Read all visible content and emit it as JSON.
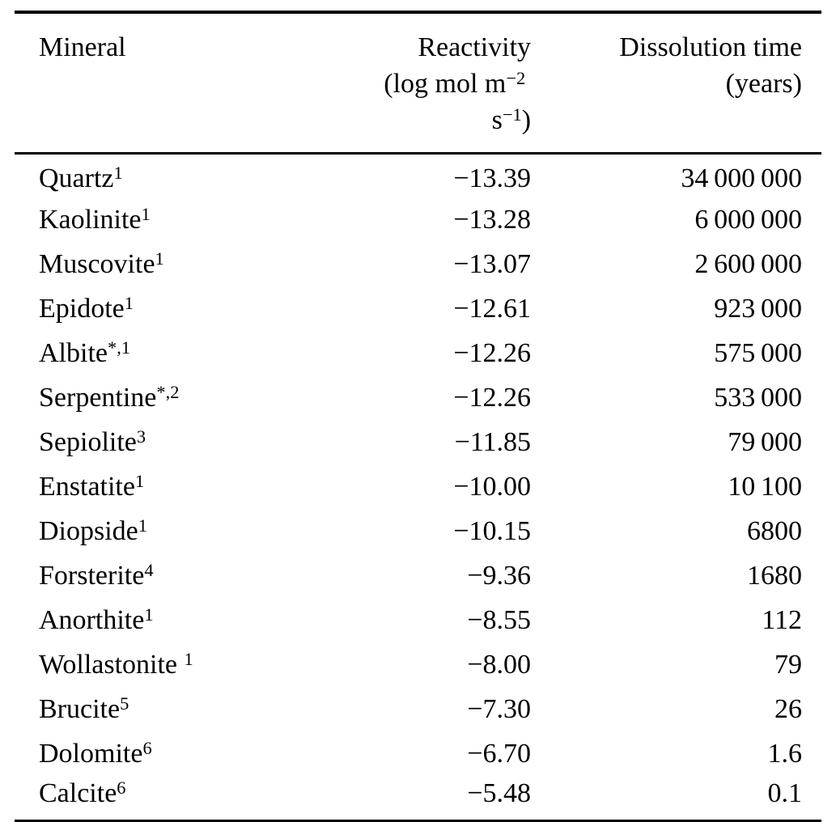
{
  "table": {
    "headers": {
      "mineral": "Mineral",
      "reactivity": "Reactivity",
      "reactivity_unit": {
        "prefix": "(log mol m",
        "sup1": "−2",
        "mid": " s",
        "sup2": "−1",
        "suffix": ")"
      },
      "dissolution": "Dissolution time",
      "dissolution_unit": "(years)"
    },
    "rows": [
      {
        "mineral": "Quartz",
        "sup": "1",
        "reactivity": "−13.39",
        "dissolution": "34 000 000"
      },
      {
        "mineral": "Kaolinite",
        "sup": "1",
        "reactivity": "−13.28",
        "dissolution": "6 000 000"
      },
      {
        "mineral": "Muscovite",
        "sup": "1",
        "reactivity": "−13.07",
        "dissolution": "2 600 000"
      },
      {
        "mineral": "Epidote",
        "sup": "1",
        "reactivity": "−12.61",
        "dissolution": "923 000"
      },
      {
        "mineral": "Albite",
        "sup": "*,1",
        "reactivity": "−12.26",
        "dissolution": "575 000"
      },
      {
        "mineral": "Serpentine",
        "sup": "*,2",
        "reactivity": "−12.26",
        "dissolution": "533 000"
      },
      {
        "mineral": "Sepiolite",
        "sup": "3",
        "reactivity": "−11.85",
        "dissolution": "79 000"
      },
      {
        "mineral": "Enstatite",
        "sup": "1",
        "reactivity": "−10.00",
        "dissolution": "10 100"
      },
      {
        "mineral": "Diopside",
        "sup": "1",
        "reactivity": "−10.15",
        "dissolution": "6800"
      },
      {
        "mineral": "Forsterite",
        "sup": "4",
        "reactivity": "−9.36",
        "dissolution": "1680"
      },
      {
        "mineral": "Anorthite",
        "sup": "1",
        "reactivity": "−8.55",
        "dissolution": "112"
      },
      {
        "mineral": "Wollastonite ",
        "sup": "1",
        "reactivity": "−8.00",
        "dissolution": "79"
      },
      {
        "mineral": "Brucite",
        "sup": "5",
        "reactivity": "−7.30",
        "dissolution": "26"
      },
      {
        "mineral": "Dolomite",
        "sup": "6",
        "reactivity": "−6.70",
        "dissolution": "1.6"
      },
      {
        "mineral": "Calcite",
        "sup": "6",
        "reactivity": "−5.48",
        "dissolution": "0.1"
      }
    ],
    "colors": {
      "text": "#000000",
      "background": "#ffffff",
      "rule": "#000000"
    }
  }
}
